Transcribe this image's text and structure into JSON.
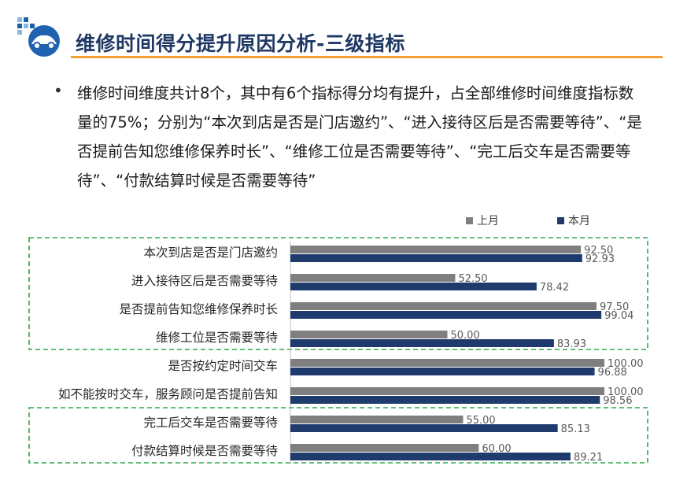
{
  "header": {
    "title": "维修时间得分提升原因分析-三级指标"
  },
  "summary": {
    "text": "维修时间维度共计8个，其中有6个指标得分均有提升，占全部维修时间维度指标数量的75%；分别为“本次到店是否是门店邀约”、“进入接待区后是否需要等待”、“是否提前告知您维修保养时长”、“维修工位是否需要等待”、“完工后交车是否需要等待”、“付款结算时候是否需要等待”"
  },
  "chart_data": {
    "type": "bar",
    "orientation": "horizontal",
    "categories": [
      "本次到店是否是门店邀约",
      "进入接待区后是否需要等待",
      "是否提前告知您维修保养时长",
      "维修工位是否需要等待",
      "是否按约定时间交车",
      "如不能按时交车，服务顾问是否提前告知",
      "完工后交车是否需要等待",
      "付款结算时候是否需要等待"
    ],
    "series": [
      {
        "name": "上月",
        "color": "#7f7f7f",
        "values": [
          92.5,
          52.5,
          97.5,
          50.0,
          100.0,
          100.0,
          55.0,
          60.0
        ],
        "labels": [
          "92.50",
          "52.50",
          "97.50",
          "50.00",
          "100.00",
          "100.00",
          "55.00",
          "60.00"
        ]
      },
      {
        "name": "本月",
        "color": "#1f3b6e",
        "values": [
          92.93,
          78.42,
          99.04,
          83.93,
          96.88,
          98.56,
          85.13,
          89.21
        ],
        "labels": [
          "92.93",
          "78.42",
          "99.04",
          "83.93",
          "96.88",
          "98.56",
          "85.13",
          "89.21"
        ]
      }
    ],
    "xlim": [
      0,
      100
    ],
    "legend_position": "top-right",
    "grid": false,
    "highlight_groups": [
      [
        0,
        3
      ],
      [
        6,
        7
      ]
    ],
    "highlight_color": "#2ea84a"
  }
}
